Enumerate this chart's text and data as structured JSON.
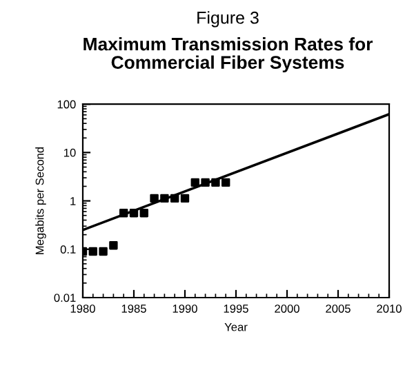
{
  "chart_data": {
    "type": "scatter",
    "title": "Figure 3",
    "subtitle": "Maximum Transmission Rates for\nCommercial Fiber Systems",
    "xlabel": "Year",
    "ylabel": "Megabits per Second",
    "series": [
      {
        "color": "#000000",
        "marker": "square",
        "x": [
          1980,
          1981,
          1982,
          1983,
          1984,
          1985,
          1986,
          1987,
          1988,
          1989,
          1990,
          1991,
          1992,
          1993,
          1994
        ],
        "values": [
          0.09,
          0.09,
          0.09,
          0.12,
          0.56,
          0.56,
          0.56,
          1.13,
          1.13,
          1.13,
          1.13,
          2.4,
          2.4,
          2.4,
          2.4
        ]
      },
      {
        "type": "line",
        "color": "#000000",
        "x": [
          1980,
          2010
        ],
        "values": [
          0.25,
          62
        ]
      }
    ],
    "log": "y",
    "xlim": [
      1980,
      2010
    ],
    "xticks": [
      1980,
      1985,
      1990,
      1995,
      2000,
      2005,
      2010
    ],
    "ylim": [
      0.01,
      100
    ],
    "yticks": [
      0.01,
      0.1,
      1,
      10,
      100
    ],
    "grid": false,
    "legend": false
  }
}
